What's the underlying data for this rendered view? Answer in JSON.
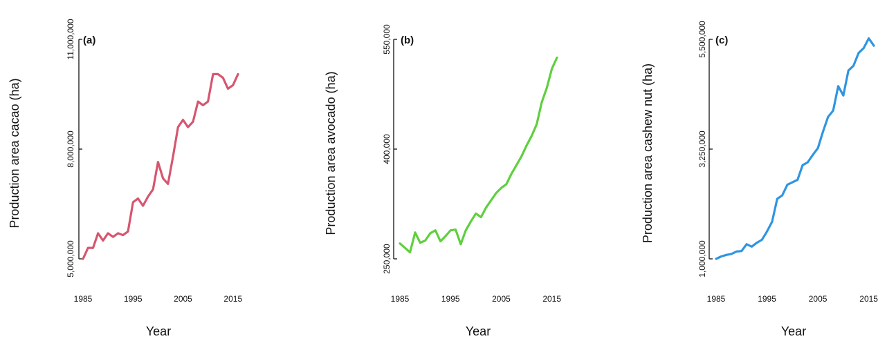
{
  "chart_data": [
    {
      "type": "line",
      "panel_label": "(a)",
      "xlabel": "Year",
      "ylabel": "Production area cacao (ha)",
      "xlim": [
        1985,
        2016
      ],
      "ylim": [
        5000000,
        11000000
      ],
      "xticks": [
        1985,
        1995,
        2005,
        2015
      ],
      "xtick_labels": [
        "1985",
        "1995",
        "2005",
        "2015"
      ],
      "yticks": [
        5000000,
        8000000,
        11000000
      ],
      "ytick_labels": [
        "5,000,000",
        "8,000,000",
        "11,000,000"
      ],
      "color": "#d6566f",
      "series": [
        {
          "x": [
            1985,
            1986,
            1987,
            1988,
            1989,
            1990,
            1991,
            1992,
            1993,
            1994,
            1995,
            1996,
            1997,
            1998,
            1999,
            2000,
            2001,
            2002,
            2003,
            2004,
            2005,
            2006,
            2007,
            2008,
            2009,
            2010,
            2011,
            2012,
            2013,
            2014,
            2015,
            2016
          ],
          "values": [
            5000000,
            5300000,
            5300000,
            5700000,
            5500000,
            5700000,
            5600000,
            5700000,
            5650000,
            5750000,
            6550000,
            6650000,
            6450000,
            6700000,
            6900000,
            7650000,
            7200000,
            7050000,
            7800000,
            8600000,
            8800000,
            8600000,
            8750000,
            9300000,
            9200000,
            9300000,
            10050000,
            10050000,
            9950000,
            9650000,
            9750000,
            10050000
          ]
        }
      ]
    },
    {
      "type": "line",
      "panel_label": "(b)",
      "xlabel": "Year",
      "ylabel": "Production area avocado (ha)",
      "xlim": [
        1985,
        2016
      ],
      "ylim": [
        250000,
        550000
      ],
      "xticks": [
        1985,
        1995,
        2005,
        2015
      ],
      "xtick_labels": [
        "1985",
        "1995",
        "2005",
        "2015"
      ],
      "yticks": [
        250000,
        400000,
        550000
      ],
      "ytick_labels": [
        "250,000",
        "400,000",
        "550,000"
      ],
      "color": "#5fcf3f",
      "series": [
        {
          "x": [
            1985,
            1986,
            1987,
            1988,
            1989,
            1990,
            1991,
            1992,
            1993,
            1994,
            1995,
            1996,
            1997,
            1998,
            1999,
            2000,
            2001,
            2002,
            2003,
            2004,
            2005,
            2006,
            2007,
            2008,
            2009,
            2010,
            2011,
            2012,
            2013,
            2014,
            2015,
            2016
          ],
          "values": [
            271000,
            265000,
            259000,
            286000,
            272000,
            275000,
            285000,
            289000,
            274000,
            281000,
            289000,
            290000,
            270000,
            289000,
            301000,
            312000,
            307000,
            320000,
            330000,
            340000,
            347000,
            352000,
            366000,
            378000,
            390000,
            405000,
            418000,
            434000,
            464000,
            484000,
            510000,
            525000
          ]
        }
      ]
    },
    {
      "type": "line",
      "panel_label": "(c)",
      "xlabel": "Year",
      "ylabel": "Production area cashew nut (ha)",
      "xlim": [
        1985,
        2016
      ],
      "ylim": [
        1000000,
        5500000
      ],
      "xticks": [
        1985,
        1995,
        2005,
        2015
      ],
      "xtick_labels": [
        "1985",
        "1995",
        "2005",
        "2015"
      ],
      "yticks": [
        1000000,
        3250000,
        5500000
      ],
      "ytick_labels": [
        "1,000,000",
        "3,250,000",
        "5,500,000"
      ],
      "color": "#2f95e1",
      "series": [
        {
          "x": [
            1985,
            1986,
            1987,
            1988,
            1989,
            1990,
            1991,
            1992,
            1993,
            1994,
            1995,
            1996,
            1997,
            1998,
            1999,
            2000,
            2001,
            2002,
            2003,
            2004,
            2005,
            2006,
            2007,
            2008,
            2009,
            2010,
            2011,
            2012,
            2013,
            2014,
            2015,
            2016
          ],
          "values": [
            1000000,
            1050000,
            1080000,
            1100000,
            1150000,
            1160000,
            1300000,
            1250000,
            1330000,
            1390000,
            1560000,
            1760000,
            2230000,
            2300000,
            2520000,
            2570000,
            2620000,
            2920000,
            2980000,
            3130000,
            3270000,
            3610000,
            3910000,
            4040000,
            4540000,
            4350000,
            4860000,
            4960000,
            5220000,
            5320000,
            5520000,
            5370000
          ]
        }
      ]
    }
  ]
}
